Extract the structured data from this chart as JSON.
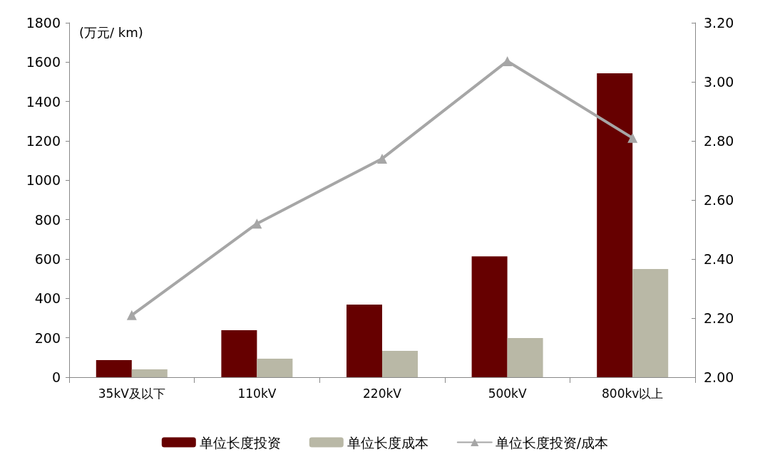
{
  "chart_data": {
    "type": "bar",
    "ylabel": "(万元/ km)",
    "categories": [
      "35kV及以下",
      "110kV",
      "220kV",
      "500kV",
      "800kv以上"
    ],
    "series": [
      {
        "name": "单位长度投资",
        "color": "#660000",
        "values": [
          87,
          239,
          369,
          614,
          1543
        ]
      },
      {
        "name": "单位长度成本",
        "color": "#b9b8a6",
        "values": [
          40,
          94,
          134,
          199,
          549
        ]
      },
      {
        "name": "单位长度投资/成本",
        "type": "line",
        "axis": "y2",
        "color": "#a6a6a6",
        "marker": "triangle",
        "values": [
          2.21,
          2.52,
          2.74,
          3.07,
          2.81
        ]
      }
    ],
    "ylim": [
      0,
      1800
    ],
    "yticks": [
      0,
      200,
      400,
      600,
      800,
      1000,
      1200,
      1400,
      1600,
      1800
    ],
    "y2lim": [
      2,
      3.2
    ],
    "y2ticks": [
      {
        "value": 2,
        "label": "2.00"
      },
      {
        "value": 2.2,
        "label": "2.20"
      },
      {
        "value": 2.4,
        "label": "2.40"
      },
      {
        "value": 2.6,
        "label": "2.60"
      },
      {
        "value": 2.8,
        "label": "2.80"
      },
      {
        "value": 3,
        "label": "3.00"
      },
      {
        "value": 3.2,
        "label": "3.20"
      }
    ],
    "grid": false,
    "legend": "bottom"
  }
}
